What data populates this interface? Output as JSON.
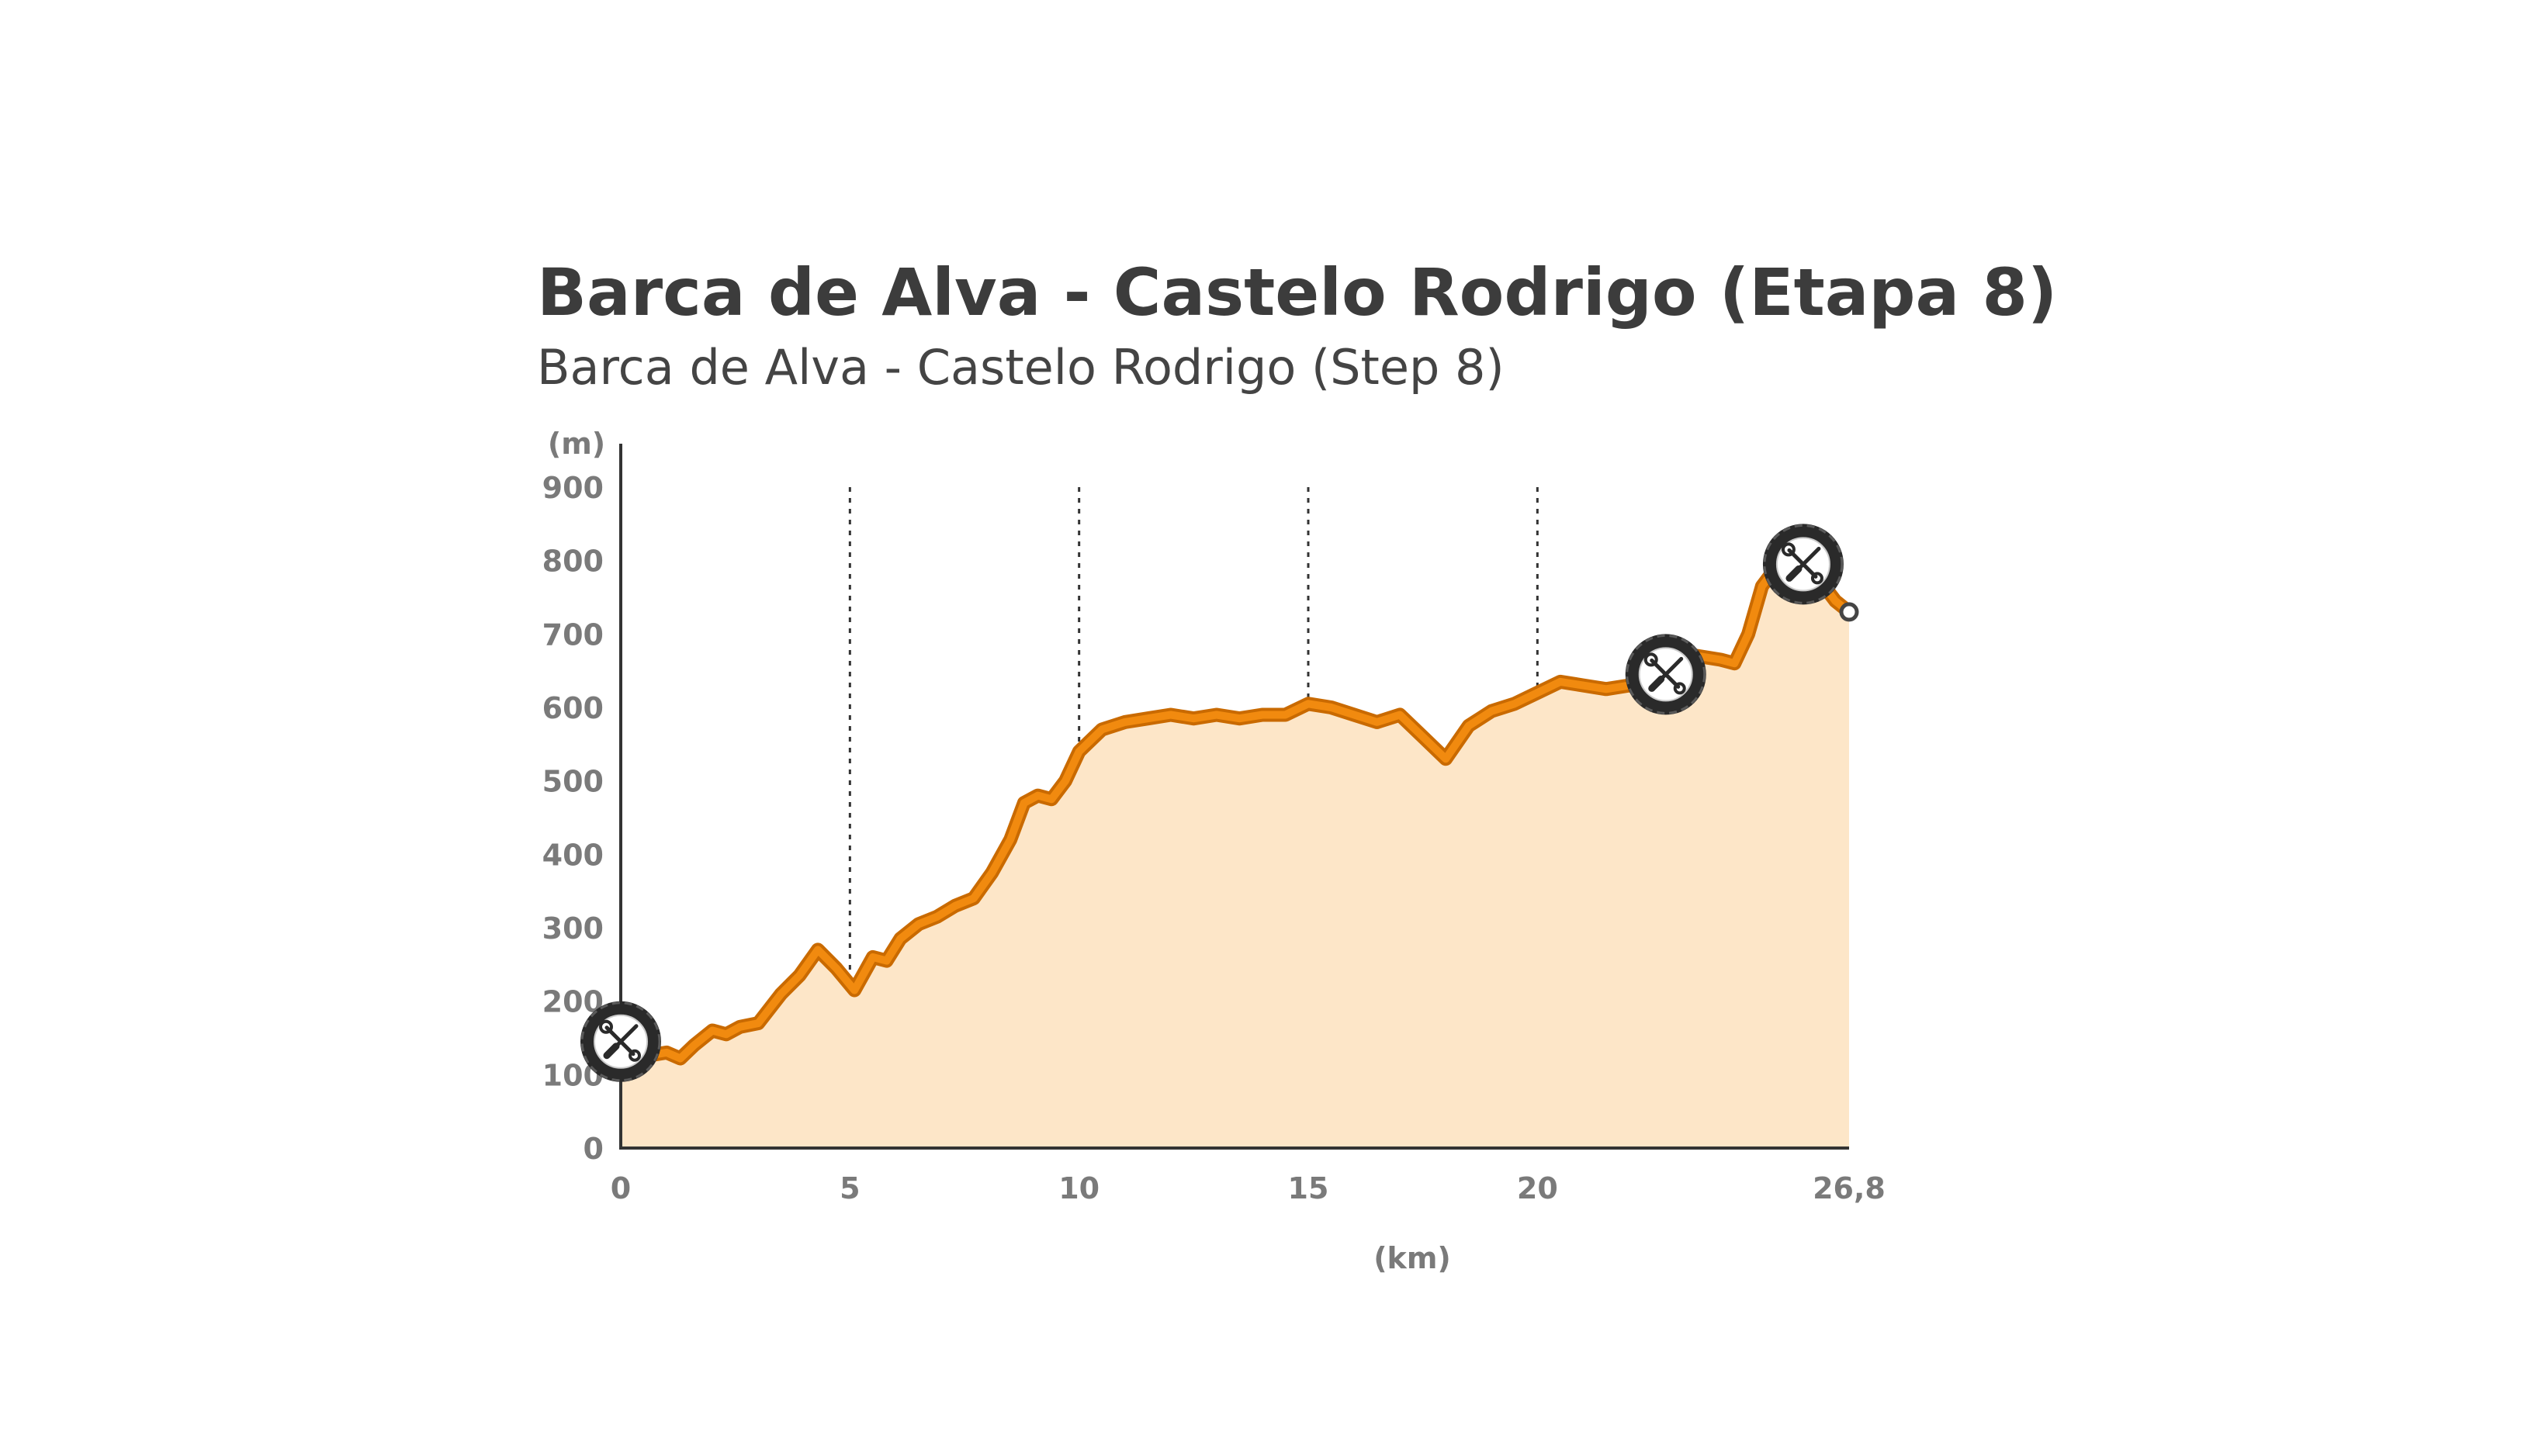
{
  "chart_data": {
    "type": "area",
    "title": "Barca de Alva - Castelo Rodrigo (Etapa 8)",
    "subtitle": "Barca de Alva - Castelo Rodrigo (Step 8)",
    "xlabel": "(km)",
    "ylabel": "(m)",
    "xlim": [
      0,
      26.8
    ],
    "ylim": [
      0,
      900
    ],
    "x_ticks": [
      0,
      5,
      10,
      15,
      20,
      26.8
    ],
    "x_tick_labels": [
      "0",
      "5",
      "10",
      "15",
      "20",
      "26,8"
    ],
    "y_ticks": [
      0,
      100,
      200,
      300,
      400,
      500,
      600,
      700,
      800,
      900
    ],
    "y_tick_labels": [
      "0",
      "100",
      "200",
      "300",
      "400",
      "500",
      "600",
      "700",
      "800",
      "900"
    ],
    "vertical_gridlines_at": [
      5,
      10,
      15,
      20
    ],
    "grid": "dotted vertical",
    "colors": {
      "line": "#f18a0f",
      "line_outline": "#c96a00",
      "fill": "#fde6c8",
      "axis": "#333333",
      "marker": "#2a2a2a"
    },
    "series": [
      {
        "x": [
          0,
          0.5,
          1,
          1.3,
          1.6,
          2.0,
          2.3,
          2.6,
          3.0,
          3.5,
          3.9,
          4.3,
          4.7,
          5.1,
          5.5,
          5.8,
          6.1,
          6.5,
          6.9,
          7.3,
          7.7,
          8.1,
          8.5,
          8.8,
          9.1,
          9.4,
          9.7,
          10.0,
          10.5,
          11.0,
          11.5,
          12.0,
          12.5,
          13.0,
          13.5,
          14.0,
          14.5,
          15.0,
          15.5,
          16.0,
          16.5,
          17.0,
          17.5,
          18.0,
          18.5,
          19.0,
          19.5,
          20.0,
          20.5,
          21.0,
          21.5,
          22.0,
          22.5,
          23.0,
          23.5,
          24.0,
          24.3,
          24.6,
          24.9,
          25.2,
          25.5,
          25.9,
          26.2,
          26.5,
          26.8
        ],
        "y": [
          130,
          125,
          130,
          122,
          140,
          160,
          155,
          165,
          170,
          210,
          235,
          270,
          245,
          215,
          260,
          255,
          285,
          305,
          315,
          330,
          340,
          375,
          420,
          470,
          480,
          475,
          500,
          540,
          570,
          580,
          585,
          590,
          585,
          590,
          585,
          590,
          590,
          605,
          600,
          590,
          580,
          590,
          560,
          530,
          575,
          595,
          605,
          620,
          635,
          630,
          625,
          630,
          625,
          640,
          670,
          665,
          660,
          700,
          765,
          790,
          790,
          785,
          770,
          745,
          730
        ]
      }
    ],
    "markers": [
      {
        "label": "service-point",
        "x": 0,
        "y": 145,
        "icon": "tools-icon"
      },
      {
        "label": "service-point",
        "x": 22.8,
        "y": 645,
        "icon": "tools-icon"
      },
      {
        "label": "service-point",
        "x": 25.8,
        "y": 795,
        "icon": "tools-icon"
      }
    ],
    "end_point": {
      "x": 26.8,
      "y": 730
    }
  }
}
